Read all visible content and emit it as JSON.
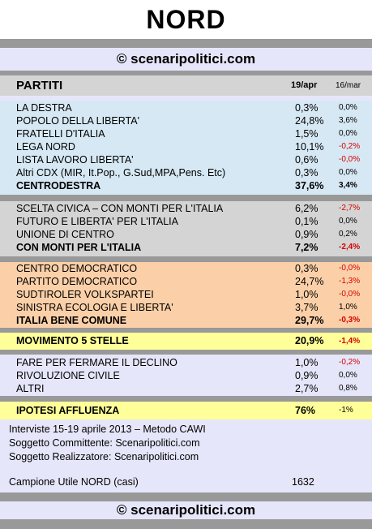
{
  "title": "NORD",
  "site": "© scenaripolitici.com",
  "header": {
    "label": "PARTITI",
    "date1": "19/apr",
    "date2": "16/mar"
  },
  "blocks": {
    "cdx": [
      {
        "name": "LA DESTRA",
        "v1": "0,3%",
        "v2": "0,0%"
      },
      {
        "name": "POPOLO DELLA LIBERTA'",
        "v1": "24,8%",
        "v2": "3,6%"
      },
      {
        "name": "FRATELLI D'ITALIA",
        "v1": "1,5%",
        "v2": "0,0%"
      },
      {
        "name": "LEGA NORD",
        "v1": "10,1%",
        "v2": "-0,2%"
      },
      {
        "name": "LISTA LAVORO LIBERTA'",
        "v1": "0,6%",
        "v2": "-0,0%"
      },
      {
        "name": "Altri CDX (MIR, It.Pop., G.Sud,MPA,Pens. Etc)",
        "v1": "0,3%",
        "v2": "0,0%"
      },
      {
        "name": "CENTRODESTRA",
        "v1": "37,6%",
        "v2": "3,4%"
      }
    ],
    "monti": [
      {
        "name": "SCELTA CIVICA – CON MONTI PER L'ITALIA",
        "v1": "6,2%",
        "v2": "-2,7%"
      },
      {
        "name": "FUTURO E LIBERTA' PER L'ITALIA",
        "v1": "0,1%",
        "v2": "0,0%"
      },
      {
        "name": "UNIONE DI CENTRO",
        "v1": "0,9%",
        "v2": "0,2%"
      },
      {
        "name": "CON MONTI PER L'ITALIA",
        "v1": "7,2%",
        "v2": "-2,4%"
      }
    ],
    "csx": [
      {
        "name": "CENTRO DEMOCRATICO",
        "v1": "0,3%",
        "v2": "-0,0%"
      },
      {
        "name": "PARTITO DEMOCRATICO",
        "v1": "24,7%",
        "v2": "-1,3%"
      },
      {
        "name": "SUDTIROLER VOLKSPARTEI",
        "v1": "1,0%",
        "v2": "-0,0%"
      },
      {
        "name": "SINISTRA ECOLOGIA E LIBERTA'",
        "v1": "3,7%",
        "v2": "1,0%"
      },
      {
        "name": "ITALIA BENE COMUNE",
        "v1": "29,7%",
        "v2": "-0,3%"
      }
    ],
    "m5s": {
      "name": "MOVIMENTO 5 STELLE",
      "v1": "20,9%",
      "v2": "-1,4%"
    },
    "altri": [
      {
        "name": "FARE PER FERMARE IL DECLINO",
        "v1": "1,0%",
        "v2": "-0,2%"
      },
      {
        "name": "RIVOLUZIONE CIVILE",
        "v1": "0,9%",
        "v2": "0,0%"
      },
      {
        "name": "ALTRI",
        "v1": "2,7%",
        "v2": "0,8%"
      }
    ],
    "affluenza": {
      "name": "IPOTESI AFFLUENZA",
      "v1": "76%",
      "v2": "-1%"
    }
  },
  "info": {
    "line1": "Interviste 15-19 aprile 2013 – Metodo CAWI",
    "line2": "Soggetto Committente: Scenaripolitici.com",
    "line3": "Soggetto Realizzatore: Scenaripolitici.com",
    "campione_label": "Campione Utile NORD (casi)",
    "campione_value": "1632"
  },
  "colors": {
    "background": "#e6e6fa",
    "separator": "#999999",
    "cdx": "#d6e8f3",
    "monti": "#d4d4d4",
    "csx": "#fbd0a8",
    "highlight": "#ffff99",
    "negative": "#d40000"
  }
}
